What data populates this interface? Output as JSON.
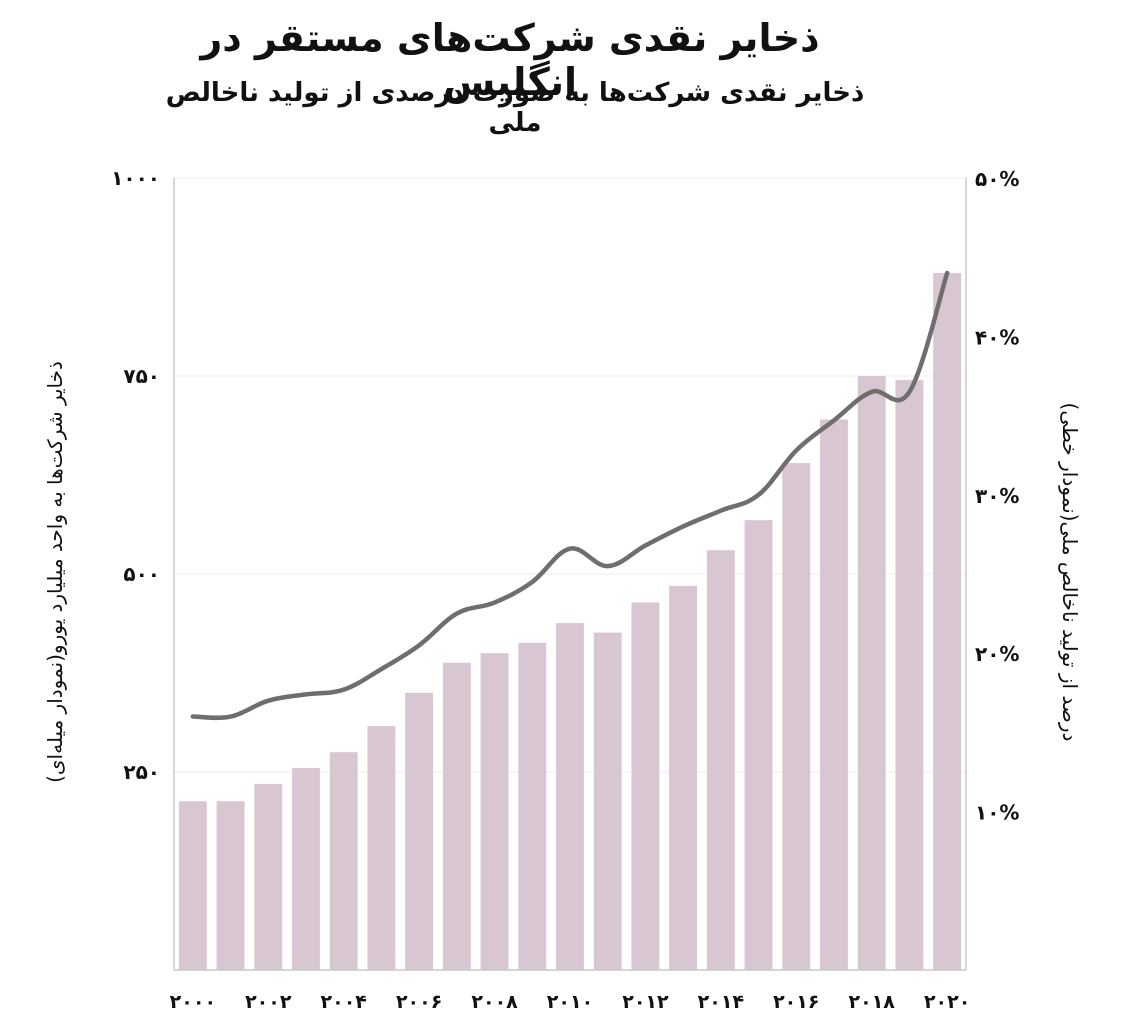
{
  "chart_data": {
    "type": "bar",
    "title": "ذخایر نقدی شرکت‌های مستقر در انگلیس",
    "subtitle": "ذخایر نقدی شرکت‌ها به صورت درصدی  از تولید ناخالص ملی",
    "ylabel_left": "ذخایر شرکت‌ها به واحد میلیارد یورو(نمودار میله‌ای)",
    "ylabel_right": "درصد از تولید ناخالص ملی(نمودار خطی)",
    "years": [
      2000,
      2001,
      2002,
      2003,
      2004,
      2005,
      2006,
      2007,
      2008,
      2009,
      2010,
      2011,
      2012,
      2013,
      2014,
      2015,
      2016,
      2017,
      2018,
      2019,
      2020
    ],
    "x_tick_labels": [
      "۲۰۰۰",
      "۲۰۰۲",
      "۲۰۰۴",
      "۲۰۰۶",
      "۲۰۰۸",
      "۲۰۱۰",
      "۲۰۱۲",
      "۲۰۱۴",
      "۲۰۱۶",
      "۲۰۱۸",
      "۲۰۲۰"
    ],
    "x_tick_years": [
      2000,
      2002,
      2004,
      2006,
      2008,
      2010,
      2012,
      2014,
      2016,
      2018,
      2020
    ],
    "series": [
      {
        "name": "ذخایر شرکت‌ها (میلیارد یورو)",
        "kind": "bar",
        "axis": "left",
        "values": [
          213,
          213,
          235,
          255,
          275,
          308,
          350,
          388,
          400,
          413,
          438,
          426,
          464,
          485,
          530,
          568,
          640,
          695,
          750,
          745,
          880
        ]
      },
      {
        "name": "درصد از تولید ناخالص ملی",
        "kind": "line",
        "axis": "right",
        "values": [
          16.0,
          16.0,
          17.0,
          17.4,
          17.7,
          19.0,
          20.5,
          22.5,
          23.2,
          24.5,
          26.6,
          25.5,
          26.8,
          28.0,
          29.0,
          30.0,
          32.8,
          34.7,
          36.5,
          36.5,
          44.0
        ]
      }
    ],
    "y_left": {
      "min": 0,
      "max": 1000,
      "ticks": [
        250,
        500,
        750,
        1000
      ],
      "tick_labels": [
        "۲۵۰",
        "۵۰۰",
        "۷۵۰",
        "۱۰۰۰"
      ]
    },
    "y_right": {
      "min": 0,
      "max": 50,
      "ticks": [
        10,
        20,
        30,
        40,
        50
      ],
      "tick_labels": [
        "۱۰%",
        "۲۰%",
        "۳۰%",
        "۴۰%",
        "۵۰%"
      ]
    },
    "colors": {
      "bar": "#d8c6d2",
      "line": "#6e6e6e",
      "grid": "#ececec",
      "axis": "#c8c8c8",
      "text": "#111111"
    }
  }
}
